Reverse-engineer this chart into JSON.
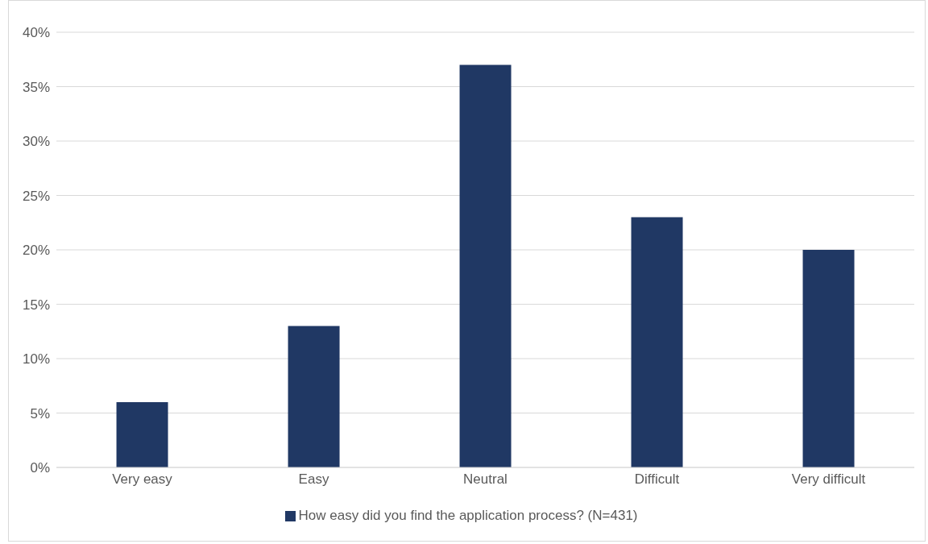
{
  "chart_data": {
    "type": "bar",
    "categories": [
      "Very easy",
      "Easy",
      "Neutral",
      "Difficult",
      "Very difficult"
    ],
    "series": [
      {
        "name": "How easy did you find the application process? (N=431)",
        "color": "#203864",
        "values": [
          6,
          13,
          37,
          23,
          20
        ]
      }
    ],
    "ylim": [
      0,
      40
    ],
    "yticks": [
      {
        "value": 0,
        "label": "0%"
      },
      {
        "value": 5,
        "label": "5%"
      },
      {
        "value": 10,
        "label": "10%"
      },
      {
        "value": 15,
        "label": "15%"
      },
      {
        "value": 20,
        "label": "20%"
      },
      {
        "value": 25,
        "label": "25%"
      },
      {
        "value": 30,
        "label": "30%"
      },
      {
        "value": 35,
        "label": "35%"
      },
      {
        "value": 40,
        "label": "40%"
      }
    ],
    "grid": "y",
    "legend": "bottom"
  }
}
